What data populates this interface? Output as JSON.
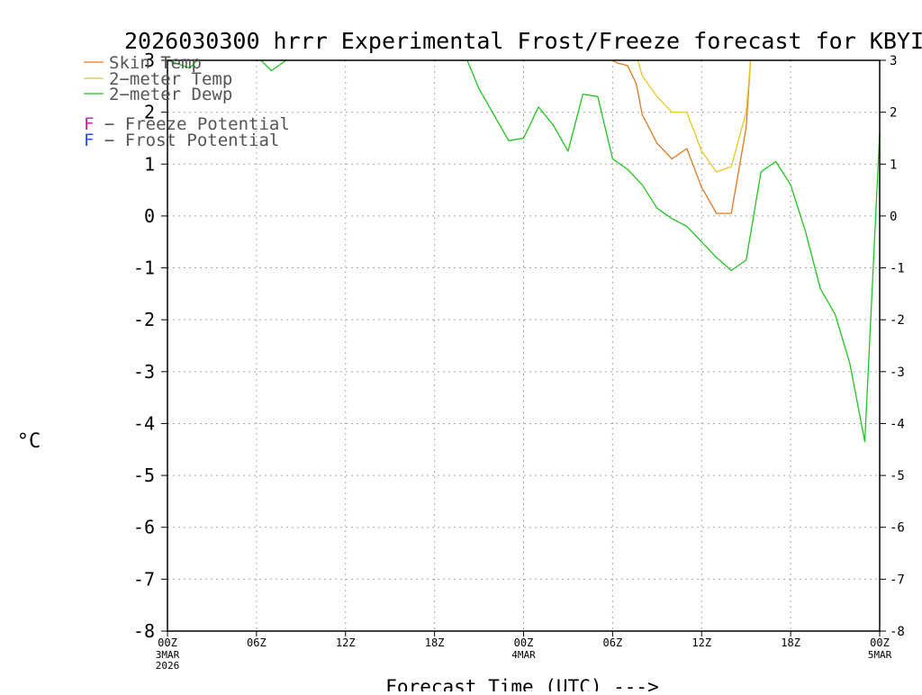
{
  "chart_data": {
    "type": "line",
    "title": "2026030300 hrrr Experimental Frost/Freeze forecast for KBYI",
    "xlabel": "Forecast Time (UTC) --->",
    "ylabel": "°C",
    "ylim": [
      -8,
      3
    ],
    "xlim": [
      0,
      48
    ],
    "grid": true,
    "legend_position": "top-left",
    "y_ticks": [
      "-8",
      "-7",
      "-6",
      "-5",
      "-4",
      "-3",
      "-2",
      "-1",
      "0",
      "1",
      "2",
      "3"
    ],
    "x_ticks": [
      {
        "x": 0,
        "label": "00Z",
        "sub": [
          "3MAR",
          "2026"
        ]
      },
      {
        "x": 6,
        "label": "06Z",
        "sub": []
      },
      {
        "x": 12,
        "label": "12Z",
        "sub": []
      },
      {
        "x": 18,
        "label": "18Z",
        "sub": []
      },
      {
        "x": 24,
        "label": "00Z",
        "sub": [
          "4MAR"
        ]
      },
      {
        "x": 30,
        "label": "06Z",
        "sub": []
      },
      {
        "x": 36,
        "label": "12Z",
        "sub": []
      },
      {
        "x": 42,
        "label": "18Z",
        "sub": []
      },
      {
        "x": 48,
        "label": "00Z",
        "sub": [
          "5MAR"
        ]
      }
    ],
    "series": [
      {
        "name": "Skin Temp",
        "color": "#e07820",
        "points": [
          [
            30,
            3.0
          ],
          [
            30.3,
            2.95
          ],
          [
            31,
            2.9
          ],
          [
            31.6,
            2.55
          ],
          [
            32,
            1.95
          ],
          [
            33,
            1.4
          ],
          [
            34,
            1.1
          ],
          [
            35,
            1.3
          ],
          [
            36,
            0.55
          ],
          [
            37,
            0.05
          ],
          [
            38,
            0.05
          ],
          [
            39,
            1.7
          ],
          [
            39.3,
            3.0
          ]
        ]
      },
      {
        "name": "2-meter Temp",
        "color": "#e8c828",
        "points": [
          [
            31.7,
            3.0
          ],
          [
            32,
            2.7
          ],
          [
            33,
            2.3
          ],
          [
            34,
            2.0
          ],
          [
            35,
            2.0
          ],
          [
            36,
            1.25
          ],
          [
            37,
            0.85
          ],
          [
            38,
            0.95
          ],
          [
            39,
            2.0
          ],
          [
            39.3,
            3.0
          ]
        ]
      },
      {
        "name": "2-meter Dewp",
        "color": "#22c422",
        "points": [
          [
            0,
            3.0
          ],
          [
            1.5,
            2.85
          ],
          [
            2,
            3.0
          ],
          [
            6.3,
            3.0
          ],
          [
            7,
            2.8
          ],
          [
            8,
            3.0
          ],
          [
            20.2,
            3.0
          ],
          [
            21,
            2.45
          ],
          [
            22,
            1.95
          ],
          [
            23,
            1.45
          ],
          [
            24,
            1.5
          ],
          [
            25,
            2.1
          ],
          [
            26,
            1.75
          ],
          [
            27,
            1.25
          ],
          [
            28,
            2.35
          ],
          [
            29,
            2.3
          ],
          [
            30,
            1.1
          ],
          [
            31,
            0.9
          ],
          [
            32,
            0.6
          ],
          [
            33,
            0.15
          ],
          [
            34,
            -0.05
          ],
          [
            35,
            -0.2
          ],
          [
            36,
            -0.5
          ],
          [
            37,
            -0.8
          ],
          [
            38,
            -1.05
          ],
          [
            39,
            -0.85
          ],
          [
            40,
            0.85
          ],
          [
            41,
            1.05
          ],
          [
            42,
            0.6
          ],
          [
            43,
            -0.3
          ],
          [
            44,
            -1.4
          ],
          [
            45,
            -1.9
          ],
          [
            46,
            -2.85
          ],
          [
            47,
            -4.35
          ],
          [
            48,
            1.6
          ]
        ]
      }
    ],
    "legend": [
      {
        "letter": "",
        "text": "Skin Temp",
        "color": "#e07820"
      },
      {
        "letter": "",
        "text": "2−meter Temp",
        "color": "#e8c828"
      },
      {
        "letter": "",
        "text": "2−meter Dewp",
        "color": "#22c422"
      },
      {
        "letter": "F",
        "text": " − Freeze Potential",
        "color": "#d020a0"
      },
      {
        "letter": "F",
        "text": " − Frost Potential",
        "color": "#3050e0"
      }
    ]
  }
}
